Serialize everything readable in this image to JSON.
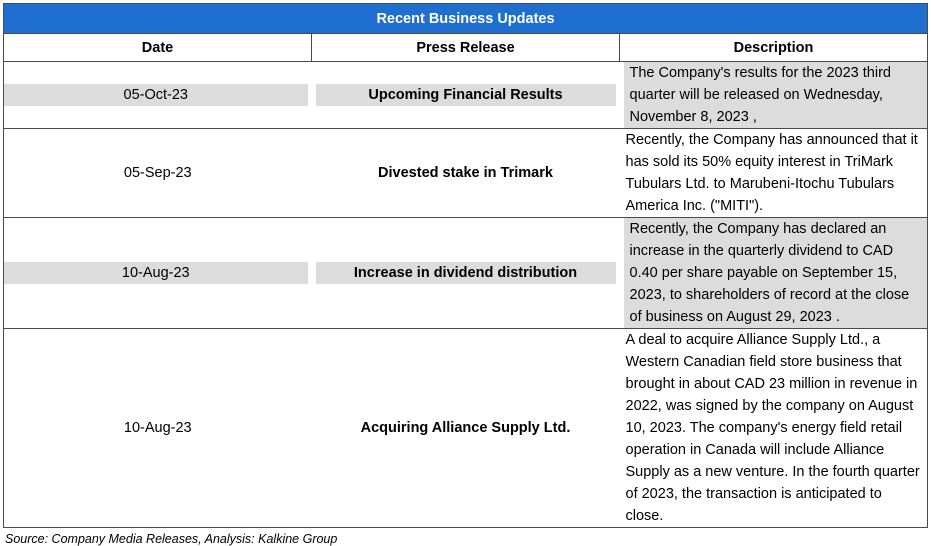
{
  "title": "Recent Business Updates",
  "headers": {
    "date": "Date",
    "press": "Press Release",
    "desc": "Description"
  },
  "rows": [
    {
      "date": "05-Oct-23",
      "press": "Upcoming Financial Results",
      "desc": "The Company's results for the 2023 third quarter will be released on Wednesday, November 8, 2023 ,",
      "shaded": true
    },
    {
      "date": "05-Sep-23",
      "press": "Divested stake in Trimark",
      "desc": "Recently, the Company has announced that it has sold its 50% equity interest in TriMark Tubulars Ltd. to Marubeni-Itochu Tubulars America Inc. (\"MITI\").",
      "shaded": false
    },
    {
      "date": "10-Aug-23",
      "press": "Increase in dividend distribution",
      "desc": "Recently, the Company has declared an increase in the quarterly dividend to CAD 0.40 per share payable on September 15, 2023, to shareholders of record at the close of business on August 29, 2023 .",
      "shaded": true
    },
    {
      "date": "10-Aug-23",
      "press": "Acquiring Alliance Supply Ltd.",
      "desc": "A deal to acquire Alliance Supply Ltd., a Western Canadian field store business that brought in about CAD 23 million in revenue in 2022, was signed by the company on August 10, 2023.  The company's energy field retail operation in Canada will include Alliance Supply as a new venture.  In the fourth quarter of 2023, the transaction is anticipated to close.",
      "shaded": false
    }
  ],
  "source": "Source: Company Media Releases, Analysis: Kalkine Group",
  "colors": {
    "header_bg": "#1f6fd0",
    "shade": "#dcdcdc"
  }
}
